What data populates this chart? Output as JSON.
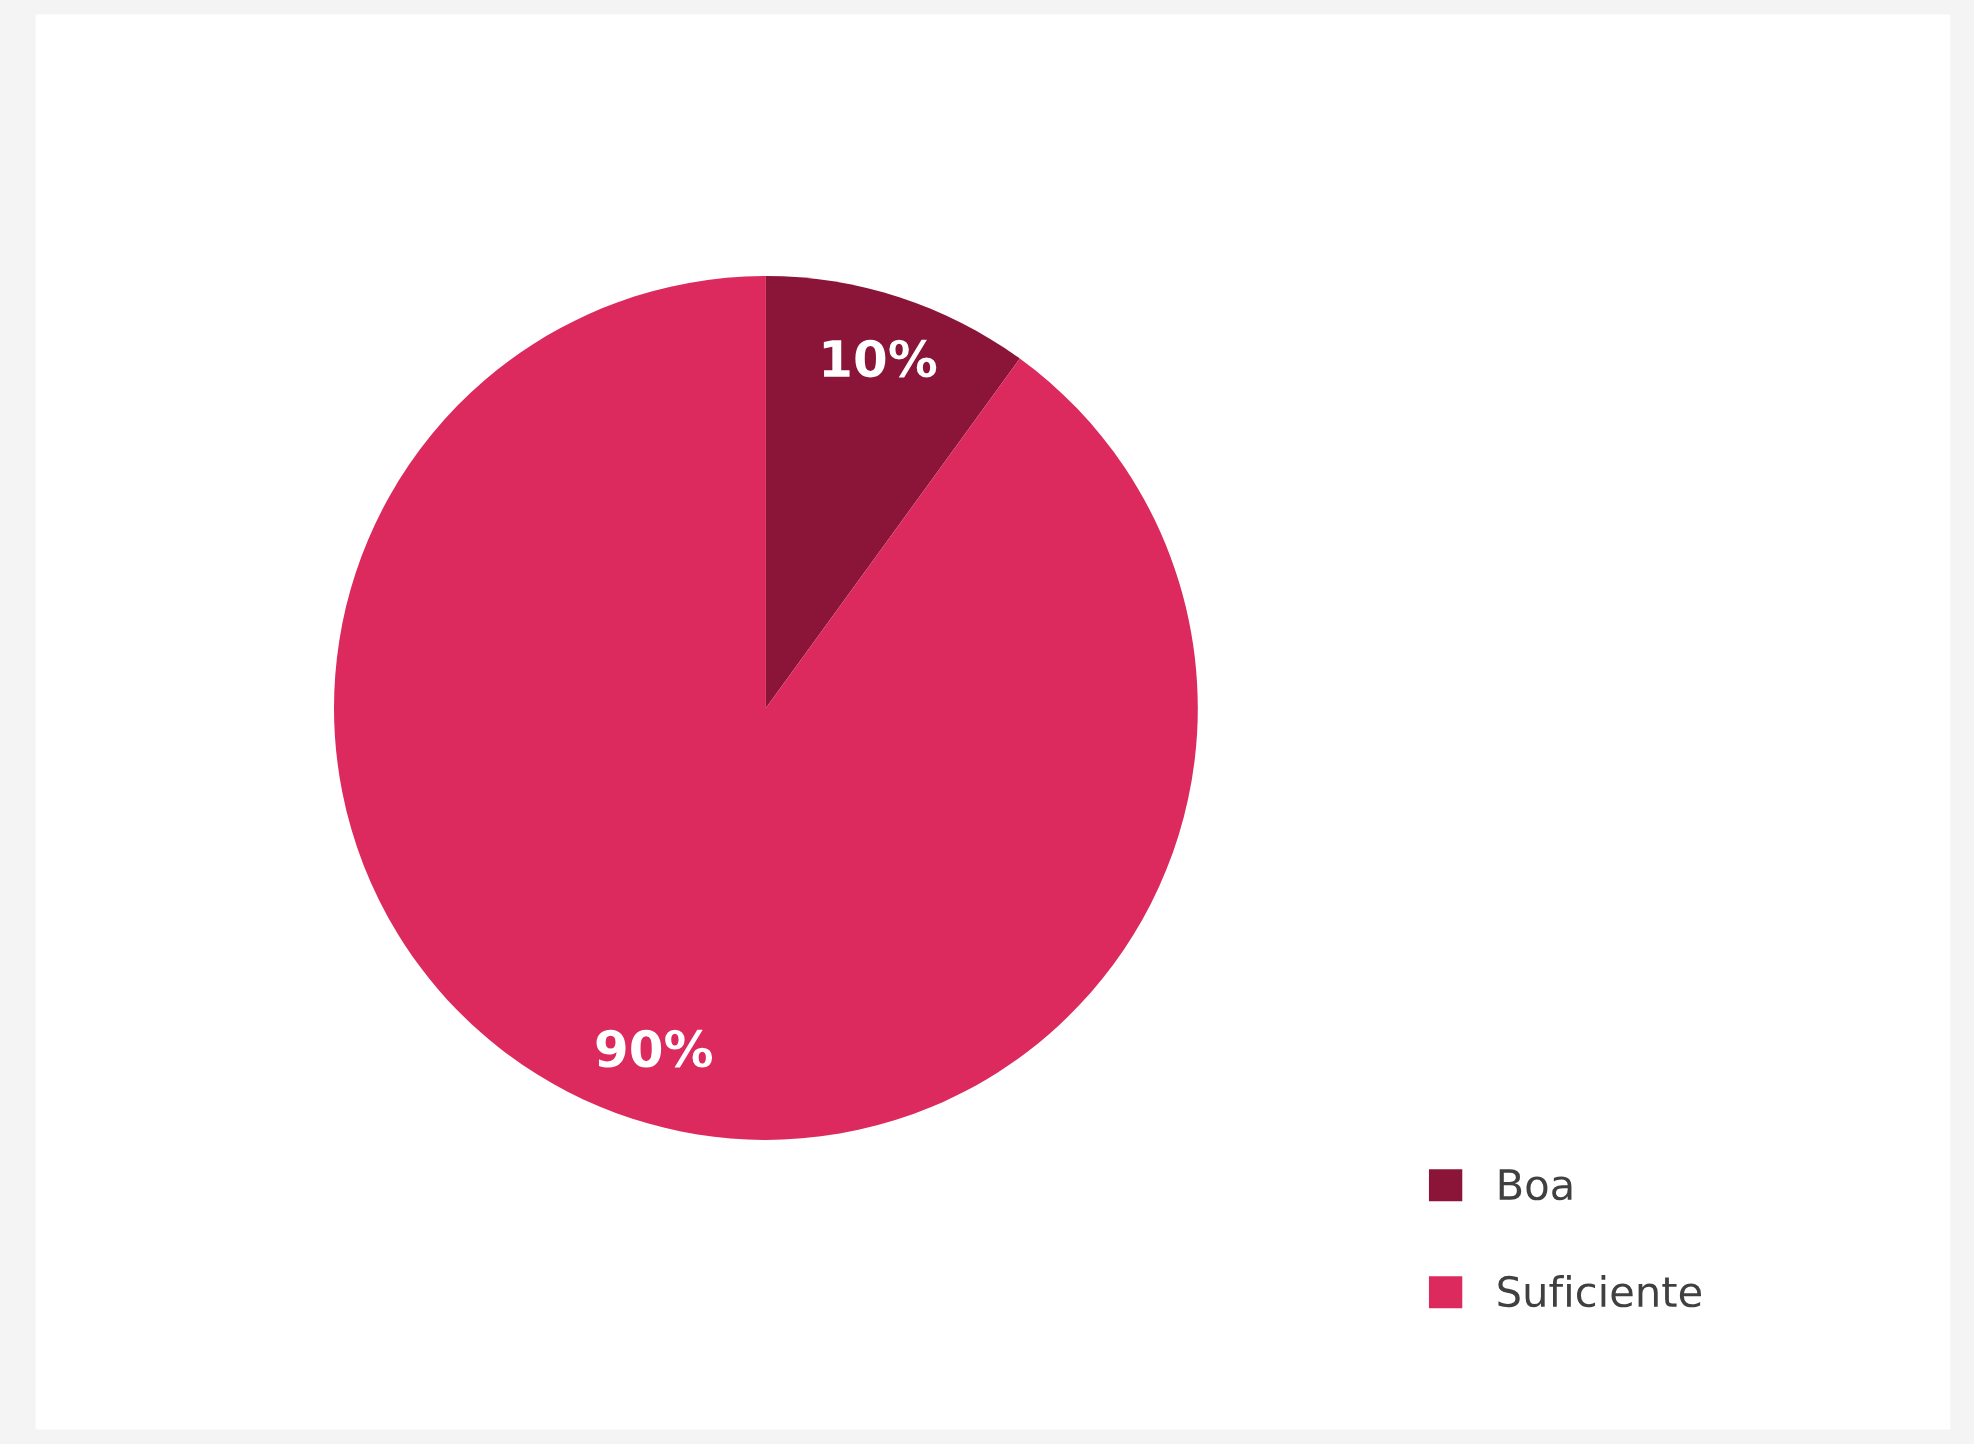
{
  "chart_data": {
    "type": "pie",
    "categories": [
      "Boa",
      "Suficiente"
    ],
    "values": [
      10,
      90
    ],
    "value_labels": [
      "10%",
      "90%"
    ],
    "colors": [
      "#8b1538",
      "#dc2a5e"
    ],
    "legend": "bottom right"
  }
}
